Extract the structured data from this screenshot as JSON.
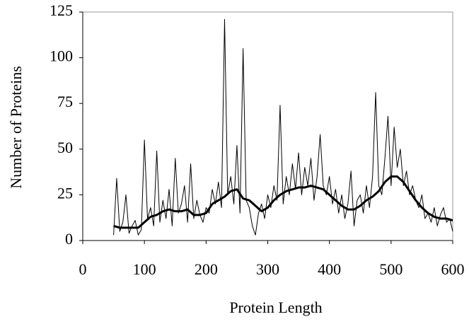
{
  "chart_data": {
    "type": "line",
    "xlabel": "Protein Length",
    "ylabel": "Number of Proteins",
    "xlim": [
      0,
      600
    ],
    "xticks": [
      0,
      100,
      200,
      300,
      400,
      500,
      600
    ],
    "ylim": [
      0,
      125
    ],
    "yticks": [
      0,
      25,
      50,
      75,
      100,
      125
    ],
    "grid": false,
    "series": [
      {
        "color": "#000000",
        "width": 1,
        "x": [
          50,
          55,
          60,
          65,
          70,
          75,
          80,
          85,
          90,
          95,
          100,
          105,
          110,
          115,
          120,
          125,
          130,
          135,
          140,
          145,
          150,
          155,
          160,
          165,
          170,
          175,
          180,
          185,
          190,
          195,
          200,
          205,
          210,
          215,
          220,
          225,
          230,
          235,
          240,
          245,
          250,
          255,
          260,
          265,
          270,
          275,
          280,
          285,
          290,
          295,
          300,
          305,
          310,
          315,
          320,
          325,
          330,
          335,
          340,
          345,
          350,
          355,
          360,
          365,
          370,
          375,
          380,
          385,
          390,
          395,
          400,
          405,
          410,
          415,
          420,
          425,
          430,
          435,
          440,
          445,
          450,
          455,
          460,
          465,
          470,
          475,
          480,
          485,
          490,
          495,
          500,
          505,
          510,
          515,
          520,
          525,
          530,
          535,
          540,
          545,
          550,
          555,
          560,
          565,
          570,
          575,
          580,
          585,
          590,
          595,
          600
        ],
        "values": [
          3,
          34,
          5,
          10,
          25,
          4,
          8,
          11,
          3,
          6,
          55,
          12,
          18,
          8,
          49,
          10,
          22,
          12,
          28,
          8,
          45,
          15,
          20,
          30,
          10,
          42,
          12,
          22,
          14,
          10,
          18,
          15,
          28,
          20,
          32,
          18,
          121,
          25,
          35,
          20,
          52,
          15,
          105,
          22,
          18,
          8,
          3,
          15,
          20,
          12,
          25,
          18,
          30,
          22,
          74,
          20,
          35,
          25,
          42,
          28,
          48,
          25,
          40,
          30,
          45,
          22,
          35,
          58,
          30,
          25,
          35,
          20,
          28,
          15,
          25,
          12,
          20,
          38,
          8,
          22,
          25,
          15,
          30,
          18,
          35,
          81,
          30,
          25,
          45,
          68,
          30,
          62,
          40,
          50,
          30,
          38,
          25,
          30,
          22,
          18,
          25,
          12,
          15,
          10,
          18,
          8,
          14,
          18,
          10,
          12,
          5
        ]
      },
      {
        "color": "#000000",
        "width": 3,
        "x": [
          50,
          60,
          70,
          80,
          90,
          100,
          110,
          120,
          130,
          140,
          150,
          160,
          170,
          180,
          190,
          200,
          210,
          220,
          230,
          240,
          250,
          260,
          270,
          280,
          290,
          300,
          310,
          320,
          330,
          340,
          350,
          360,
          370,
          380,
          390,
          400,
          410,
          420,
          430,
          440,
          450,
          460,
          470,
          480,
          490,
          500,
          510,
          520,
          530,
          540,
          550,
          560,
          570,
          580,
          590,
          600
        ],
        "values": [
          8,
          7,
          7,
          7,
          7,
          10,
          13,
          14,
          16,
          17,
          16,
          16,
          17,
          14,
          14,
          15,
          20,
          22,
          24,
          27,
          28,
          23,
          22,
          19,
          16,
          18,
          22,
          25,
          27,
          28,
          29,
          29,
          30,
          29,
          28,
          25,
          22,
          19,
          17,
          17,
          19,
          22,
          24,
          27,
          32,
          35,
          35,
          32,
          27,
          22,
          18,
          15,
          13,
          12,
          12,
          11
        ]
      }
    ]
  }
}
